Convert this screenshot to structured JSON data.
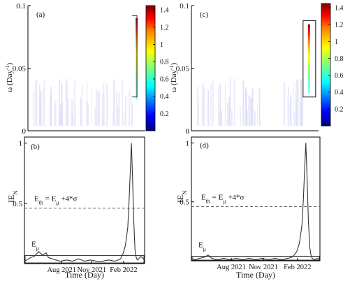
{
  "colorbar": {
    "ticks": [
      "1.4",
      "1.2",
      "1",
      "0.8",
      "0.6",
      "0.4",
      "0.2"
    ],
    "tick_values": [
      1.4,
      1.2,
      1.0,
      0.8,
      0.6,
      0.4,
      0.2
    ],
    "range": [
      0,
      1.45
    ],
    "colors": [
      "#00007f",
      "#0000ff",
      "#00ffff",
      "#7fff7f",
      "#ffff00",
      "#ff7f00",
      "#ff0000",
      "#7f0000"
    ]
  },
  "chart_data": [
    {
      "type": "heatmap",
      "panel_label": "(a)",
      "ylabel": "ω (Day⁻¹)",
      "ylim": [
        0,
        0.1
      ],
      "yticks": [
        "0.1",
        "0.05",
        "0"
      ],
      "ytick_values": [
        0.1,
        0.05,
        0
      ],
      "xlim": [
        0,
        1
      ],
      "hot_region": {
        "x_range": [
          0.9,
          0.93
        ],
        "omega_range": [
          0.025,
          0.09
        ],
        "max_value": 1.45,
        "peak_omega": 0.087
      }
    },
    {
      "type": "line",
      "panel_label": "(b)",
      "ylabel": "IE_N",
      "xlabel": "Time (Day)",
      "ylim": [
        0,
        1.05
      ],
      "yticks": [
        "1",
        "0.5"
      ],
      "ytick_values": [
        1,
        0.5
      ],
      "xticks": [
        "Aug 2021",
        "Nov 2021",
        "Feb 2022"
      ],
      "xtick_positions": [
        0.31,
        0.56,
        0.825
      ],
      "threshold": {
        "value": 0.46,
        "label": "E_th = E_μ + 4*σ"
      },
      "mean": {
        "value": 0.05,
        "label": "E_μ"
      },
      "series": [
        {
          "x": [
            0,
            0.02,
            0.05,
            0.08,
            0.1,
            0.12,
            0.15,
            0.18,
            0.2,
            0.23,
            0.26,
            0.3,
            0.35,
            0.4,
            0.45,
            0.5,
            0.55,
            0.6,
            0.65,
            0.7,
            0.75,
            0.78,
            0.8,
            0.82,
            0.84,
            0.86,
            0.87,
            0.88,
            0.89,
            0.9,
            0.91,
            0.92,
            0.93,
            0.94,
            0.95,
            0.97,
            1
          ],
          "y": [
            0.02,
            0.03,
            0.05,
            0.06,
            0.08,
            0.1,
            0.07,
            0.09,
            0.05,
            0.04,
            0.03,
            0.02,
            0.03,
            0.02,
            0.04,
            0.02,
            0.03,
            0.02,
            0.02,
            0.03,
            0.02,
            0.03,
            0.04,
            0.08,
            0.15,
            0.3,
            0.5,
            0.75,
            1.0,
            0.7,
            0.35,
            0.12,
            0.05,
            0.03,
            0.04,
            0.06,
            0.03
          ]
        }
      ]
    },
    {
      "type": "heatmap",
      "panel_label": "(c)",
      "ylabel": "ω (Day⁻¹)",
      "ylim": [
        0,
        0.1
      ],
      "yticks": [
        "0.1",
        "0.05",
        "0"
      ],
      "ytick_values": [
        0.1,
        0.05,
        0
      ],
      "xlim": [
        0,
        1
      ],
      "hot_region": {
        "x_range": [
          0.9,
          0.93
        ],
        "omega_range": [
          0.03,
          0.085
        ],
        "max_value": 1.45,
        "peak_omega": 0.083
      }
    },
    {
      "type": "line",
      "panel_label": "(d)",
      "ylabel": "IE_N",
      "xlabel": "Time (Day)",
      "ylim": [
        0,
        1.05
      ],
      "yticks": [
        "1",
        "0.5"
      ],
      "ytick_values": [
        1,
        0.5
      ],
      "xticks": [
        "Aug 2021",
        "Nov 2021",
        "Feb 2022"
      ],
      "xtick_positions": [
        0.31,
        0.56,
        0.825
      ],
      "threshold": {
        "value": 0.46,
        "label": "E_th = E_μ + 4*σ"
      },
      "mean": {
        "value": 0.02,
        "label": "E_μ"
      },
      "series": [
        {
          "x": [
            0,
            0.03,
            0.06,
            0.1,
            0.13,
            0.16,
            0.2,
            0.25,
            0.3,
            0.35,
            0.4,
            0.45,
            0.5,
            0.55,
            0.6,
            0.65,
            0.7,
            0.75,
            0.78,
            0.8,
            0.82,
            0.84,
            0.86,
            0.87,
            0.88,
            0.89,
            0.9,
            0.91,
            0.92,
            0.93,
            0.94,
            0.96,
            0.98,
            1
          ],
          "y": [
            0.02,
            0.01,
            0.02,
            0.03,
            0.05,
            0.02,
            0.01,
            0.02,
            0.01,
            0.02,
            0.01,
            0.02,
            0.01,
            0.02,
            0.01,
            0.02,
            0.01,
            0.02,
            0.03,
            0.05,
            0.08,
            0.15,
            0.3,
            0.5,
            0.75,
            1.0,
            0.7,
            0.35,
            0.12,
            0.05,
            0.02,
            0.01,
            0.02,
            0.01
          ]
        }
      ]
    }
  ]
}
